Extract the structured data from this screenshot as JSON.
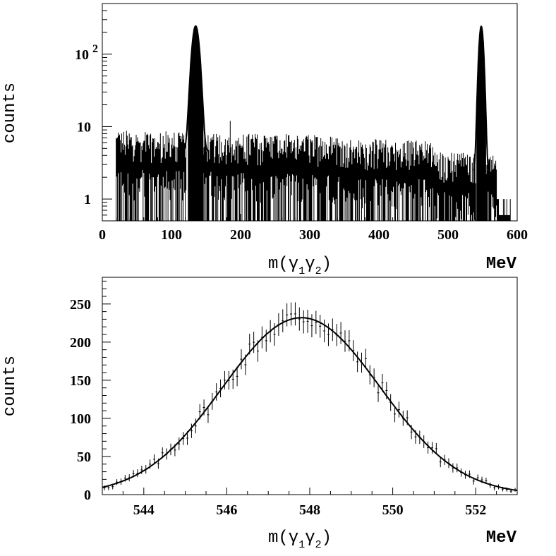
{
  "chart_data": [
    {
      "type": "bar",
      "ylabel": "counts",
      "xlabel": "m(γ1γ2)",
      "xlabel_main": "m(γ",
      "xlabel_sub1": "1",
      "xlabel_mid": "γ",
      "xlabel_sub2": "2",
      "xlabel_close": ")",
      "xunit": "MeV",
      "xlim": [
        0,
        600
      ],
      "ylim": [
        0.5,
        500
      ],
      "yscale": "log",
      "xticks": [
        0,
        100,
        200,
        300,
        400,
        500,
        600
      ],
      "yticks": [
        {
          "value": 1,
          "label": "1"
        },
        {
          "value": 10,
          "label": "10"
        },
        {
          "value": 100,
          "label": "10",
          "sup": "2"
        }
      ],
      "background": {
        "x_start": 20,
        "x_end": 590,
        "bin_width": 1
      },
      "peaks": [
        {
          "center": 135,
          "height": 240,
          "sigma": 4.5
        },
        {
          "center": 548,
          "height": 240,
          "sigma": 2.8
        }
      ],
      "gaps": [
        [
          122,
          128
        ],
        [
          541,
          545
        ]
      ],
      "spike": {
        "x": 185,
        "height": 12
      }
    },
    {
      "type": "scatter",
      "ylabel": "counts",
      "xlabel": "m(γ1γ2)",
      "xlabel_main": "m(γ",
      "xlabel_sub1": "1",
      "xlabel_mid": "γ",
      "xlabel_sub2": "2",
      "xlabel_close": ")",
      "xunit": "MeV",
      "xlim": [
        543,
        553
      ],
      "ylim": [
        0,
        285
      ],
      "xticks": [
        544,
        546,
        548,
        550,
        552
      ],
      "yticks": [
        0,
        50,
        100,
        150,
        200,
        250
      ],
      "fit": {
        "type": "gaussian",
        "amplitude": 232,
        "mean": 547.8,
        "sigma": 1.9
      },
      "points": {
        "x_start": 543.05,
        "x_end": 552.95,
        "step": 0.1
      }
    }
  ]
}
